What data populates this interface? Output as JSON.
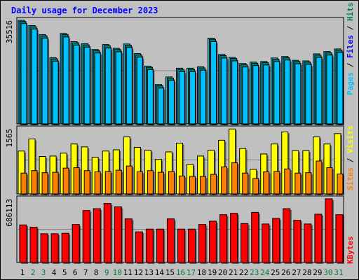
{
  "title": "Daily usage for December 2023",
  "colors": {
    "hits": "#00c0ff",
    "files": "#008060",
    "pages": "#00c0ff",
    "visits": "#ffff00",
    "sites": "#ff8000",
    "kbytes": "#ff0000",
    "weekend_label": "#008040",
    "weekday_label": "#000000"
  },
  "chart_data": [
    {
      "type": "bar",
      "name": "hits-files-pages",
      "ytick": "35516",
      "ylim": [
        0,
        35516
      ],
      "legend": [
        "Pages",
        "Files",
        "Hits"
      ],
      "x": [
        "1",
        "2",
        "3",
        "4",
        "5",
        "6",
        "7",
        "8",
        "9",
        "10",
        "11",
        "12",
        "13",
        "14",
        "15",
        "16",
        "17",
        "18",
        "19",
        "20",
        "21",
        "22",
        "23",
        "24",
        "25",
        "26",
        "27",
        "28",
        "29",
        "30",
        "31"
      ],
      "series": [
        {
          "name": "Hits",
          "values": [
            35500,
            33700,
            30600,
            22700,
            31000,
            28200,
            27500,
            25500,
            27200,
            25900,
            27400,
            24100,
            19800,
            13500,
            16100,
            19100,
            19100,
            19600,
            29400,
            23800,
            22800,
            20700,
            21200,
            21400,
            22600,
            23100,
            21800,
            21600,
            24000,
            24800,
            25700
          ]
        },
        {
          "name": "Files",
          "values": [
            35100,
            33300,
            30200,
            22300,
            30600,
            27800,
            27100,
            25100,
            26800,
            25500,
            27000,
            23700,
            19400,
            13100,
            15700,
            18700,
            18700,
            19200,
            29000,
            23400,
            22400,
            20300,
            20800,
            21000,
            22200,
            22700,
            21400,
            21200,
            23600,
            24400,
            25300
          ]
        },
        {
          "name": "Pages",
          "values": [
            34400,
            32500,
            29400,
            21500,
            29800,
            27000,
            26300,
            24300,
            26000,
            24700,
            26200,
            22900,
            18600,
            12300,
            14900,
            17900,
            17900,
            18400,
            28200,
            22600,
            21600,
            19500,
            20000,
            20200,
            21400,
            21900,
            20600,
            20400,
            22800,
            23600,
            24500
          ]
        }
      ]
    },
    {
      "type": "bar",
      "name": "visits-sites",
      "ytick": "1565",
      "ylim": [
        0,
        1565
      ],
      "legend": [
        "Sites",
        "Visits"
      ],
      "x": [
        "1",
        "2",
        "3",
        "4",
        "5",
        "6",
        "7",
        "8",
        "9",
        "10",
        "11",
        "12",
        "13",
        "14",
        "15",
        "16",
        "17",
        "18",
        "19",
        "20",
        "21",
        "22",
        "23",
        "24",
        "25",
        "26",
        "27",
        "28",
        "29",
        "30",
        "31"
      ],
      "series": [
        {
          "name": "Visits",
          "values": [
            1030,
            1320,
            900,
            910,
            980,
            1200,
            1130,
            880,
            1030,
            1060,
            1370,
            1120,
            1050,
            830,
            1010,
            1220,
            710,
            910,
            1050,
            1290,
            1560,
            1090,
            590,
            960,
            1200,
            1490,
            1040,
            1040,
            1370,
            1200,
            1450
          ]
        },
        {
          "name": "Sites",
          "values": [
            500,
            560,
            510,
            520,
            620,
            630,
            560,
            530,
            540,
            570,
            670,
            530,
            560,
            520,
            540,
            430,
            420,
            420,
            470,
            650,
            750,
            500,
            370,
            530,
            540,
            600,
            500,
            510,
            790,
            630,
            480
          ]
        }
      ]
    },
    {
      "type": "bar",
      "name": "kbytes",
      "ytick": "686113",
      "ylim": [
        0,
        686113
      ],
      "legend": [
        "KBytes"
      ],
      "x": [
        "1",
        "2",
        "3",
        "4",
        "5",
        "6",
        "7",
        "8",
        "9",
        "10",
        "11",
        "12",
        "13",
        "14",
        "15",
        "16",
        "17",
        "18",
        "19",
        "20",
        "21",
        "22",
        "23",
        "24",
        "25",
        "26",
        "27",
        "28",
        "29",
        "30",
        "31"
      ],
      "series": [
        {
          "name": "KBytes",
          "values": [
            405000,
            380000,
            310000,
            310000,
            315000,
            410000,
            560000,
            580000,
            636000,
            600000,
            470000,
            330000,
            360000,
            360000,
            470000,
            360000,
            360000,
            410000,
            445000,
            515000,
            530000,
            420000,
            540000,
            415000,
            475000,
            580000,
            455000,
            415000,
            520000,
            686113,
            515000
          ]
        }
      ]
    }
  ],
  "weekend_days": [
    2,
    3,
    9,
    10,
    16,
    17,
    23,
    24,
    30,
    31
  ]
}
